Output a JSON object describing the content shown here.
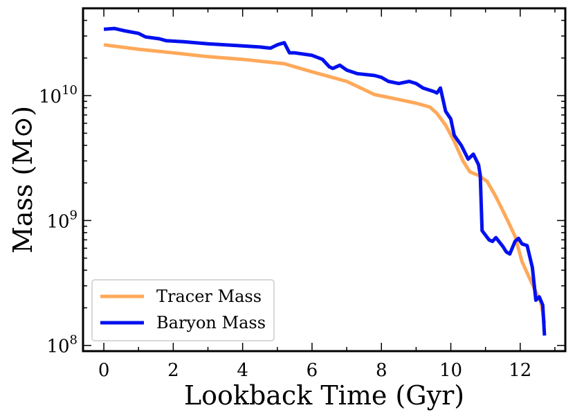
{
  "chart_data": {
    "type": "line",
    "xlabel": "Lookback Time (Gyr)",
    "ylabel": "Mass (M⊙)",
    "xlim": [
      -0.6,
      13.3
    ],
    "ylim": [
      90000000,
      50000000000
    ],
    "yscale": "log",
    "x_ticks": [
      0,
      2,
      4,
      6,
      8,
      10,
      12
    ],
    "x_tick_labels": [
      "0",
      "2",
      "4",
      "6",
      "8",
      "10",
      "12"
    ],
    "y_ticks": [
      {
        "value": 10000000000,
        "base": "10",
        "exp": "10"
      },
      {
        "value": 1000000000,
        "base": "10",
        "exp": "9"
      },
      {
        "value": 100000000,
        "base": "10",
        "exp": "8"
      }
    ],
    "legend": {
      "location": "lower-left",
      "entries": [
        "Tracer Mass",
        "Baryon Mass"
      ]
    },
    "series": [
      {
        "name": "Tracer Mass",
        "color": "#ffa95a",
        "points": [
          [
            0,
            25500000000.0
          ],
          [
            1,
            23500000000.0
          ],
          [
            2,
            22000000000.0
          ],
          [
            3,
            20500000000.0
          ],
          [
            4,
            19500000000.0
          ],
          [
            5.2,
            18000000000.0
          ],
          [
            6,
            15500000000.0
          ],
          [
            7,
            13000000000.0
          ],
          [
            7.8,
            10200000000.0
          ],
          [
            8.5,
            9300000000.0
          ],
          [
            9.0,
            8700000000.0
          ],
          [
            9.4,
            8100000000.0
          ],
          [
            9.6,
            7200000000.0
          ],
          [
            9.85,
            5800000000.0
          ],
          [
            10.1,
            4300000000.0
          ],
          [
            10.35,
            3000000000.0
          ],
          [
            10.55,
            2450000000.0
          ],
          [
            10.8,
            2300000000.0
          ],
          [
            11.05,
            2050000000.0
          ],
          [
            11.3,
            1550000000.0
          ],
          [
            11.6,
            1050000000.0
          ],
          [
            11.85,
            750000000.0
          ],
          [
            12.05,
            470000000.0
          ],
          [
            12.3,
            330000000.0
          ],
          [
            12.6,
            220000000.0
          ],
          [
            12.7,
            150000000.0
          ]
        ]
      },
      {
        "name": "Baryon Mass",
        "color": "#0010ee",
        "points": [
          [
            0,
            34000000000.0
          ],
          [
            0.3,
            34500000000.0
          ],
          [
            0.6,
            33000000000.0
          ],
          [
            1.0,
            31500000000.0
          ],
          [
            1.2,
            29500000000.0
          ],
          [
            1.6,
            28500000000.0
          ],
          [
            1.8,
            27500000000.0
          ],
          [
            2.3,
            27000000000.0
          ],
          [
            3.0,
            26000000000.0
          ],
          [
            3.5,
            25500000000.0
          ],
          [
            4.0,
            25000000000.0
          ],
          [
            4.5,
            24500000000.0
          ],
          [
            4.8,
            24000000000.0
          ],
          [
            5.0,
            25500000000.0
          ],
          [
            5.2,
            26500000000.0
          ],
          [
            5.35,
            22000000000.0
          ],
          [
            5.5,
            22000000000.0
          ],
          [
            6.0,
            21000000000.0
          ],
          [
            6.3,
            19500000000.0
          ],
          [
            6.5,
            17000000000.0
          ],
          [
            6.6,
            16500000000.0
          ],
          [
            6.8,
            17500000000.0
          ],
          [
            7.0,
            16000000000.0
          ],
          [
            7.3,
            15000000000.0
          ],
          [
            7.8,
            14500000000.0
          ],
          [
            8.0,
            14000000000.0
          ],
          [
            8.2,
            13000000000.0
          ],
          [
            8.5,
            12500000000.0
          ],
          [
            8.8,
            13000000000.0
          ],
          [
            9.0,
            12500000000.0
          ],
          [
            9.2,
            11500000000.0
          ],
          [
            9.5,
            10800000000.0
          ],
          [
            9.6,
            10500000000.0
          ],
          [
            9.7,
            11500000000.0
          ],
          [
            9.85,
            7500000000.0
          ],
          [
            10.0,
            6500000000.0
          ],
          [
            10.1,
            4800000000.0
          ],
          [
            10.3,
            4000000000.0
          ],
          [
            10.5,
            3100000000.0
          ],
          [
            10.65,
            3400000000.0
          ],
          [
            10.8,
            2800000000.0
          ],
          [
            10.85,
            2300000000.0
          ],
          [
            10.9,
            830000000.0
          ],
          [
            11.1,
            700000000.0
          ],
          [
            11.2,
            680000000.0
          ],
          [
            11.3,
            730000000.0
          ],
          [
            11.5,
            620000000.0
          ],
          [
            11.6,
            560000000.0
          ],
          [
            11.7,
            540000000.0
          ],
          [
            11.85,
            680000000.0
          ],
          [
            11.95,
            720000000.0
          ],
          [
            12.05,
            650000000.0
          ],
          [
            12.2,
            630000000.0
          ],
          [
            12.35,
            420000000.0
          ],
          [
            12.45,
            230000000.0
          ],
          [
            12.55,
            245000000.0
          ],
          [
            12.65,
            210000000.0
          ],
          [
            12.7,
            120000000.0
          ]
        ]
      }
    ]
  }
}
